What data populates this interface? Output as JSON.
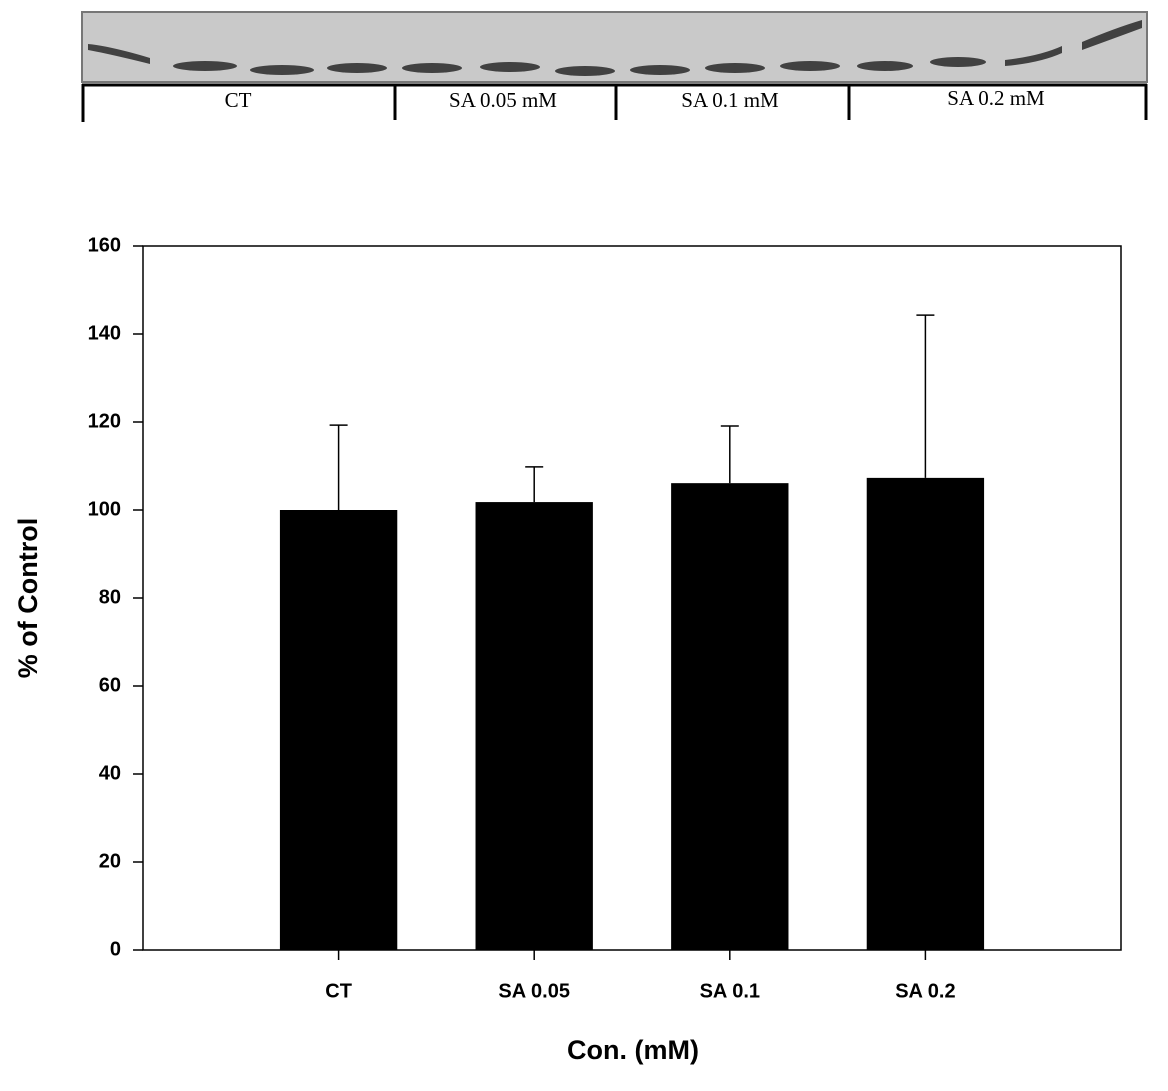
{
  "blot": {
    "labels": [
      "CT",
      "SA 0.05 mM",
      "SA 0.1 mM",
      "SA 0.2 mM"
    ]
  },
  "chart_data": {
    "type": "bar",
    "ylabel": "% of Control",
    "xlabel": "Con. (mM)",
    "categories": [
      "CT",
      "SA 0.05",
      "SA 0.1",
      "SA 0.2"
    ],
    "values": [
      100,
      101.8,
      106.1,
      107.3
    ],
    "errors": [
      19.3,
      8,
      13,
      37
    ],
    "color": "#000000",
    "ylim": [
      0,
      160
    ],
    "yticks": [
      0,
      20,
      40,
      60,
      80,
      100,
      120,
      140,
      160
    ]
  }
}
